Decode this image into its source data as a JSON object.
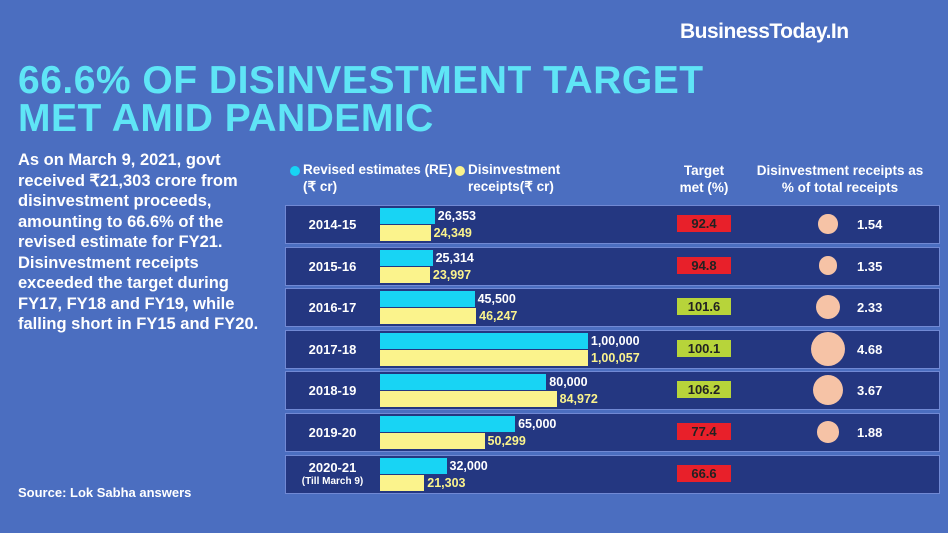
{
  "chart_data": {
    "type": "bar",
    "orientation": "horizontal",
    "brand": "BusinessToday.In",
    "title": "66.6% OF DISINVESTMENT TARGET MET AMID PANDEMIC",
    "description": "As on March 9, 2021, govt received ₹21,303 crore from disinvestment proceeds, amounting to 66.6% of the revised estimate for FY21. Disinvestment receipts exceeded the target during FY17, FY18 and FY19, while falling short in FY15 and FY20.",
    "source": "Source: Lok Sabha answers",
    "categories": [
      "2014-15",
      "2015-16",
      "2016-17",
      "2017-18",
      "2018-19",
      "2019-20",
      "2020-21"
    ],
    "category_notes": [
      null,
      null,
      null,
      null,
      null,
      null,
      "(Till March 9)"
    ],
    "series": [
      {
        "name": "Revised estimates (RE)(₹ cr)",
        "color": "#18d4f4",
        "values": [
          26353,
          25314,
          45500,
          100000,
          80000,
          65000,
          32000
        ],
        "value_labels": [
          "26,353",
          "25,314",
          "45,500",
          "1,00,000",
          "80,000",
          "65,000",
          "32,000"
        ]
      },
      {
        "name": "Disinvestment receipts(₹ cr)",
        "color": "#fbf38c",
        "values": [
          24349,
          23997,
          46247,
          100057,
          84972,
          50299,
          21303
        ],
        "value_labels": [
          "24,349",
          "23,997",
          "46,247",
          "1,00,057",
          "84,972",
          "50,299",
          "21,303"
        ]
      }
    ],
    "target_met": {
      "name": "Target met (%)",
      "values": [
        92.4,
        94.8,
        101.6,
        100.1,
        106.2,
        77.4,
        66.6
      ],
      "colors": [
        "#e8202a",
        "#e8202a",
        "#b7d43a",
        "#b7d43a",
        "#b7d43a",
        "#e8202a",
        "#e8202a"
      ]
    },
    "receipt_share": {
      "name": "Disinvestment receipts as % of total receipts",
      "values": [
        1.54,
        1.35,
        2.33,
        4.68,
        3.67,
        1.88,
        null
      ],
      "color": "#f6c3a6"
    }
  }
}
